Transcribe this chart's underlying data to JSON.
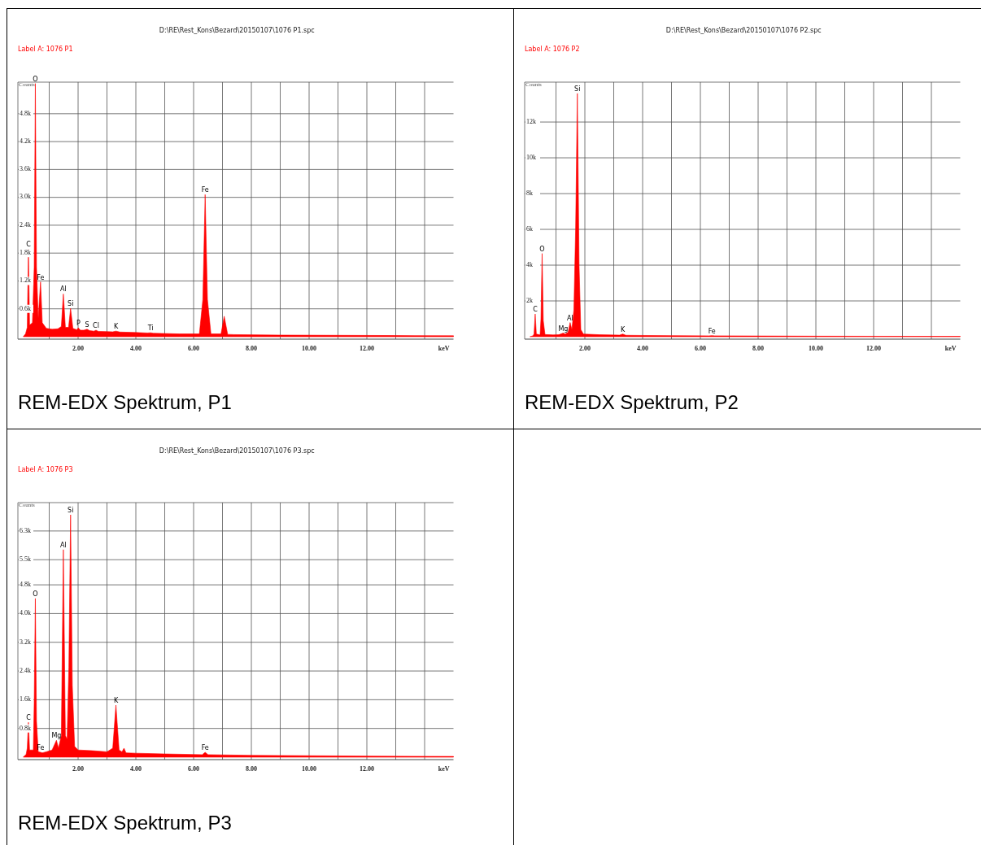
{
  "chart_data": [
    {
      "type": "area",
      "title": "D:\\RE\\Rest_Kons\\Bezard\\20150107\\1076 P1.spc",
      "subtitle": "Label A: 1076 P1",
      "xlabel": "keV",
      "ylabel": "Counts",
      "grid": true,
      "xlim": [
        0,
        15
      ],
      "xticks": [
        {
          "value": 1,
          "label": null
        },
        {
          "value": 2,
          "label": "2.00"
        },
        {
          "value": 3,
          "label": null
        },
        {
          "value": 4,
          "label": "4.00"
        },
        {
          "value": 5,
          "label": null
        },
        {
          "value": 6,
          "label": "6.00"
        },
        {
          "value": 7,
          "label": null
        },
        {
          "value": 8,
          "label": "8.00"
        },
        {
          "value": 9,
          "label": null
        },
        {
          "value": 10,
          "label": "10.00"
        },
        {
          "value": 11,
          "label": null
        },
        {
          "value": 12,
          "label": "12.00"
        },
        {
          "value": 13,
          "label": null
        },
        {
          "value": 14,
          "label": null
        }
      ],
      "ylim": [
        0,
        5480
      ],
      "yticks": [
        {
          "value": 600,
          "label": "0.6k"
        },
        {
          "value": 1200,
          "label": "1.2k"
        },
        {
          "value": 1800,
          "label": "1.8k"
        },
        {
          "value": 2400,
          "label": "2.4k"
        },
        {
          "value": 3000,
          "label": "3.0k"
        },
        {
          "value": 3600,
          "label": "3.6k"
        },
        {
          "value": 4200,
          "label": "4.2k"
        },
        {
          "value": 4800,
          "label": "4.8k"
        }
      ],
      "series": [
        {
          "color": "#ff0000",
          "x": [
            0.1,
            0.18,
            0.24,
            0.28,
            0.32,
            0.42,
            0.48,
            0.52,
            0.56,
            0.62,
            0.7,
            0.76,
            0.9,
            1.1,
            1.3,
            1.42,
            1.49,
            1.56,
            1.67,
            1.74,
            1.82,
            1.95,
            2.01,
            2.08,
            2.2,
            2.31,
            2.4,
            2.55,
            2.62,
            2.7,
            3.0,
            3.2,
            3.31,
            3.45,
            4.0,
            4.4,
            4.51,
            4.6,
            5.5,
            6.2,
            6.32,
            6.4,
            6.48,
            6.6,
            6.95,
            7.06,
            7.18,
            7.4,
            9,
            11,
            13,
            15
          ],
          "values": [
            0,
            60,
            200,
            1890,
            250,
            300,
            1500,
            5450,
            1500,
            400,
            1180,
            300,
            180,
            160,
            170,
            220,
            920,
            200,
            200,
            610,
            180,
            150,
            190,
            140,
            140,
            160,
            130,
            120,
            140,
            115,
            110,
            105,
            120,
            100,
            90,
            80,
            85,
            75,
            60,
            60,
            800,
            3060,
            800,
            60,
            60,
            440,
            50,
            45,
            35,
            30,
            25,
            20
          ]
        }
      ],
      "annotations": [
        {
          "text": "C",
          "x": 0.28,
          "y": 1890
        },
        {
          "text": "O",
          "x": 0.52,
          "y": 5450
        },
        {
          "text": "Fe",
          "x": 0.7,
          "y": 1180
        },
        {
          "text": "Al",
          "x": 1.49,
          "y": 920
        },
        {
          "text": "Si",
          "x": 1.74,
          "y": 610
        },
        {
          "text": "P",
          "x": 2.01,
          "y": 190
        },
        {
          "text": "S",
          "x": 2.31,
          "y": 160
        },
        {
          "text": "Cl",
          "x": 2.62,
          "y": 140
        },
        {
          "text": "K",
          "x": 3.31,
          "y": 120
        },
        {
          "text": "Ti",
          "x": 4.51,
          "y": 85
        },
        {
          "text": "Fe",
          "x": 6.4,
          "y": 3060
        },
        "REM-EDX Spektrum, P1"
      ]
    },
    {
      "type": "area",
      "title": "D:\\RE\\Rest_Kons\\Bezard\\20150107\\1076 P2.spc",
      "subtitle": "Label A: 1076 P2",
      "xlabel": "keV",
      "ylabel": "Counts",
      "grid": true,
      "xlim": [
        0,
        15
      ],
      "xticks": [
        {
          "value": 1,
          "label": null
        },
        {
          "value": 2,
          "label": "2.00"
        },
        {
          "value": 3,
          "label": null
        },
        {
          "value": 4,
          "label": "4.00"
        },
        {
          "value": 5,
          "label": null
        },
        {
          "value": 6,
          "label": "6.00"
        },
        {
          "value": 7,
          "label": null
        },
        {
          "value": 8,
          "label": "8.00"
        },
        {
          "value": 9,
          "label": null
        },
        {
          "value": 10,
          "label": "10.00"
        },
        {
          "value": 11,
          "label": null
        },
        {
          "value": 12,
          "label": "12.00"
        },
        {
          "value": 13,
          "label": null
        },
        {
          "value": 14,
          "label": null
        }
      ],
      "ylim": [
        0,
        14230
      ],
      "yticks": [
        {
          "value": 2000,
          "label": "2k"
        },
        {
          "value": 4000,
          "label": "4k"
        },
        {
          "value": 6000,
          "label": "6k"
        },
        {
          "value": 8000,
          "label": "8k"
        },
        {
          "value": 10000,
          "label": "10k"
        },
        {
          "value": 12000,
          "label": "12k"
        }
      ],
      "series": [
        {
          "color": "#ff0000",
          "x": [
            0.1,
            0.2,
            0.24,
            0.28,
            0.32,
            0.45,
            0.48,
            0.52,
            0.56,
            0.62,
            0.9,
            1.1,
            1.25,
            1.32,
            1.42,
            1.49,
            1.55,
            1.62,
            1.68,
            1.74,
            1.8,
            1.86,
            1.95,
            2.5,
            3.2,
            3.31,
            3.42,
            4,
            5,
            6.3,
            6.4,
            6.5,
            8,
            10,
            12,
            15
          ],
          "values": [
            0,
            50,
            150,
            1270,
            150,
            100,
            1000,
            4650,
            900,
            120,
            100,
            110,
            200,
            150,
            250,
            790,
            400,
            1500,
            6000,
            13600,
            4000,
            400,
            150,
            110,
            90,
            150,
            80,
            70,
            60,
            50,
            60,
            50,
            40,
            30,
            25,
            20
          ]
        }
      ],
      "annotations": [
        {
          "text": "C",
          "x": 0.28,
          "y": 1270
        },
        {
          "text": "O",
          "x": 0.52,
          "y": 4650
        },
        {
          "text": "Mg",
          "x": 1.25,
          "y": 200
        },
        {
          "text": "Al",
          "x": 1.49,
          "y": 790
        },
        {
          "text": "Si",
          "x": 1.74,
          "y": 13600
        },
        {
          "text": "K",
          "x": 3.31,
          "y": 150
        },
        {
          "text": "Fe",
          "x": 6.4,
          "y": 60
        },
        "REM-EDX Spektrum, P2"
      ]
    },
    {
      "type": "area",
      "title": "D:\\RE\\Rest_Kons\\Bezard\\20150107\\1076 P3.spc",
      "subtitle": "Label A: 1076 P3",
      "xlabel": "keV",
      "ylabel": "Counts",
      "grid": true,
      "xlim": [
        0,
        15
      ],
      "xticks": [
        {
          "value": 1,
          "label": null
        },
        {
          "value": 2,
          "label": "2.00"
        },
        {
          "value": 3,
          "label": null
        },
        {
          "value": 4,
          "label": "4.00"
        },
        {
          "value": 5,
          "label": null
        },
        {
          "value": 6,
          "label": "6.00"
        },
        {
          "value": 7,
          "label": null
        },
        {
          "value": 8,
          "label": "8.00"
        },
        {
          "value": 9,
          "label": null
        },
        {
          "value": 10,
          "label": "10.00"
        },
        {
          "value": 11,
          "label": null
        },
        {
          "value": 12,
          "label": "12.00"
        },
        {
          "value": 13,
          "label": null
        },
        {
          "value": 14,
          "label": null
        }
      ],
      "ylim": [
        0,
        7090
      ],
      "yticks": [
        {
          "value": 800,
          "label": "0.8k"
        },
        {
          "value": 1600,
          "label": "1.6k"
        },
        {
          "value": 2400,
          "label": "2.4k"
        },
        {
          "value": 3200,
          "label": "3.2k"
        },
        {
          "value": 4000,
          "label": "4.0k"
        },
        {
          "value": 4800,
          "label": "4.8k"
        },
        {
          "value": 5500,
          "label": "5.5k"
        },
        {
          "value": 6300,
          "label": "6.3k"
        }
      ],
      "series": [
        {
          "color": "#ff0000",
          "x": [
            0.1,
            0.2,
            0.24,
            0.28,
            0.32,
            0.45,
            0.48,
            0.52,
            0.56,
            0.62,
            0.7,
            0.76,
            0.9,
            1.1,
            1.25,
            1.32,
            1.42,
            1.49,
            1.56,
            1.62,
            1.68,
            1.74,
            1.8,
            1.88,
            2.0,
            2.5,
            3.0,
            3.2,
            3.31,
            3.42,
            3.52,
            3.59,
            3.66,
            4.0,
            5,
            6.3,
            6.4,
            6.5,
            8,
            10,
            12,
            15
          ],
          "values": [
            0,
            80,
            250,
            970,
            200,
            200,
            1500,
            4420,
            1000,
            150,
            135,
            120,
            150,
            200,
            470,
            250,
            600,
            5780,
            600,
            500,
            2500,
            6750,
            2000,
            300,
            200,
            180,
            150,
            250,
            1450,
            200,
            150,
            250,
            120,
            110,
            90,
            70,
            135,
            70,
            50,
            40,
            30,
            20
          ]
        }
      ],
      "annotations": [
        {
          "text": "C",
          "x": 0.28,
          "y": 970
        },
        {
          "text": "O",
          "x": 0.52,
          "y": 4420
        },
        {
          "text": "Fe",
          "x": 0.7,
          "y": 135
        },
        {
          "text": "Mg",
          "x": 1.25,
          "y": 470
        },
        {
          "text": "Al",
          "x": 1.49,
          "y": 5780
        },
        {
          "text": "Si",
          "x": 1.74,
          "y": 6750
        },
        {
          "text": "K",
          "x": 3.31,
          "y": 1450
        },
        {
          "text": "Fe",
          "x": 6.4,
          "y": 135
        },
        "REM-EDX Spektrum, P3"
      ]
    }
  ]
}
